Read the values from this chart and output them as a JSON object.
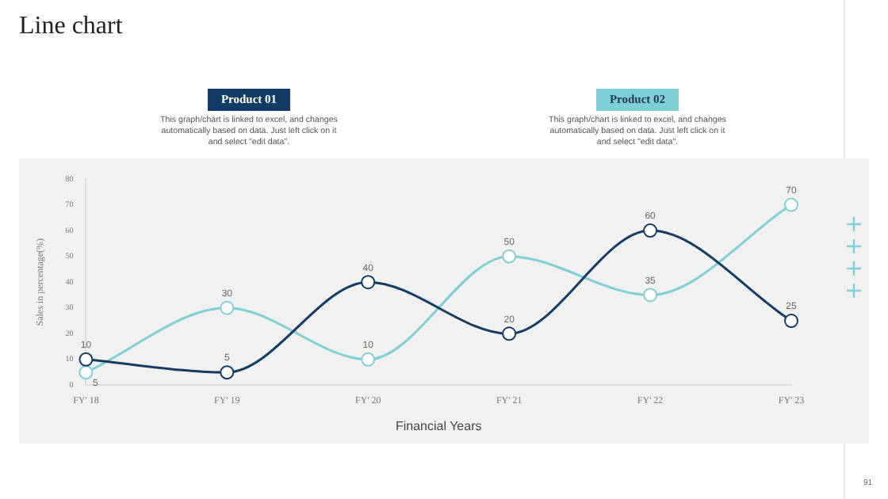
{
  "chart_data": {
    "type": "line",
    "title": "Line chart",
    "xlabel": "Financial Years",
    "ylabel": "Sales in percentage(%)",
    "categories": [
      "FY' 18",
      "FY' 19",
      "FY' 20",
      "FY' 21",
      "FY' 22",
      "FY' 23"
    ],
    "series": [
      {
        "name": "Product 01",
        "color": "#123c63",
        "values": [
          10,
          5,
          40,
          20,
          60,
          25
        ]
      },
      {
        "name": "Product 02",
        "color": "#7fcfd6",
        "values": [
          5,
          30,
          10,
          50,
          35,
          70
        ]
      }
    ],
    "annotations": [
      "This graph/chart is linked to excel, and changes automatically based on data. Just left click on it and select \"edit data\".",
      "This graph/chart is linked to excel, and changes automatically based on data. Just left click on it and select \"edit data\".",
      "91"
    ],
    "ylim": [
      0,
      80
    ],
    "yticks": [
      0,
      10,
      20,
      30,
      40,
      50,
      60,
      70,
      80
    ],
    "grid": false,
    "legend": "top",
    "marker": "circle",
    "line_style": "solid",
    "data_labels": true
  }
}
